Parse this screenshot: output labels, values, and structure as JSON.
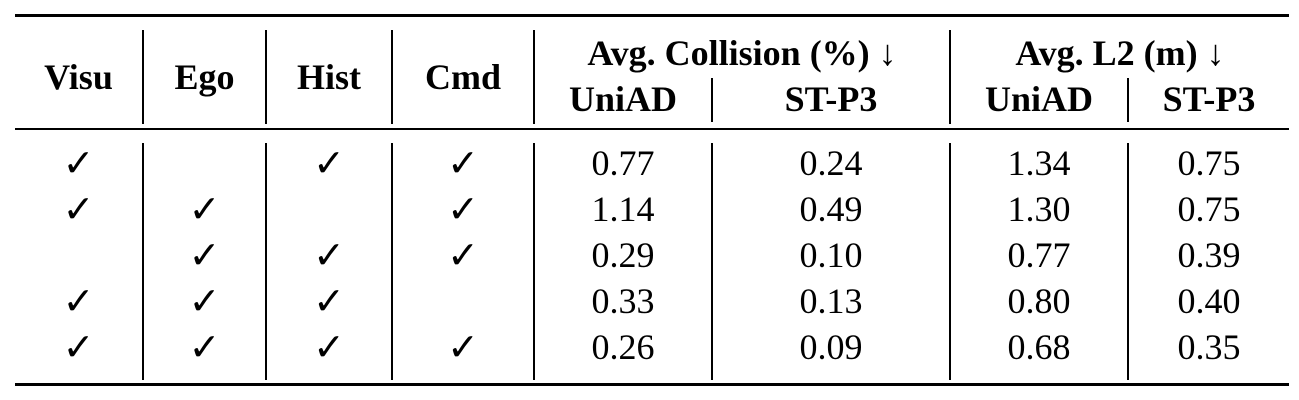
{
  "table": {
    "header": {
      "visu": "Visu",
      "ego": "Ego",
      "hist": "Hist",
      "cmd": "Cmd",
      "collision_group": "Avg. Collision (%) ↓",
      "l2_group": "Avg. L2 (m) ↓",
      "uniad_1": "UniAD",
      "stp3_1": "ST-P3",
      "uniad_2": "UniAD",
      "stp3_2": "ST-P3"
    },
    "check_symbol": "✓",
    "rows": [
      {
        "visu": "✓",
        "ego": "",
        "hist": "✓",
        "cmd": "✓",
        "col_uniad": "0.77",
        "col_stp3": "0.24",
        "l2_uniad": "1.34",
        "l2_stp3": "0.75"
      },
      {
        "visu": "✓",
        "ego": "✓",
        "hist": "",
        "cmd": "✓",
        "col_uniad": "1.14",
        "col_stp3": "0.49",
        "l2_uniad": "1.30",
        "l2_stp3": "0.75"
      },
      {
        "visu": "",
        "ego": "✓",
        "hist": "✓",
        "cmd": "✓",
        "col_uniad": "0.29",
        "col_stp3": "0.10",
        "l2_uniad": "0.77",
        "l2_stp3": "0.39"
      },
      {
        "visu": "✓",
        "ego": "✓",
        "hist": "✓",
        "cmd": "",
        "col_uniad": "0.33",
        "col_stp3": "0.13",
        "l2_uniad": "0.80",
        "l2_stp3": "0.40"
      },
      {
        "visu": "✓",
        "ego": "✓",
        "hist": "✓",
        "cmd": "✓",
        "col_uniad": "0.26",
        "col_stp3": "0.09",
        "l2_uniad": "0.68",
        "l2_stp3": "0.35"
      }
    ]
  }
}
